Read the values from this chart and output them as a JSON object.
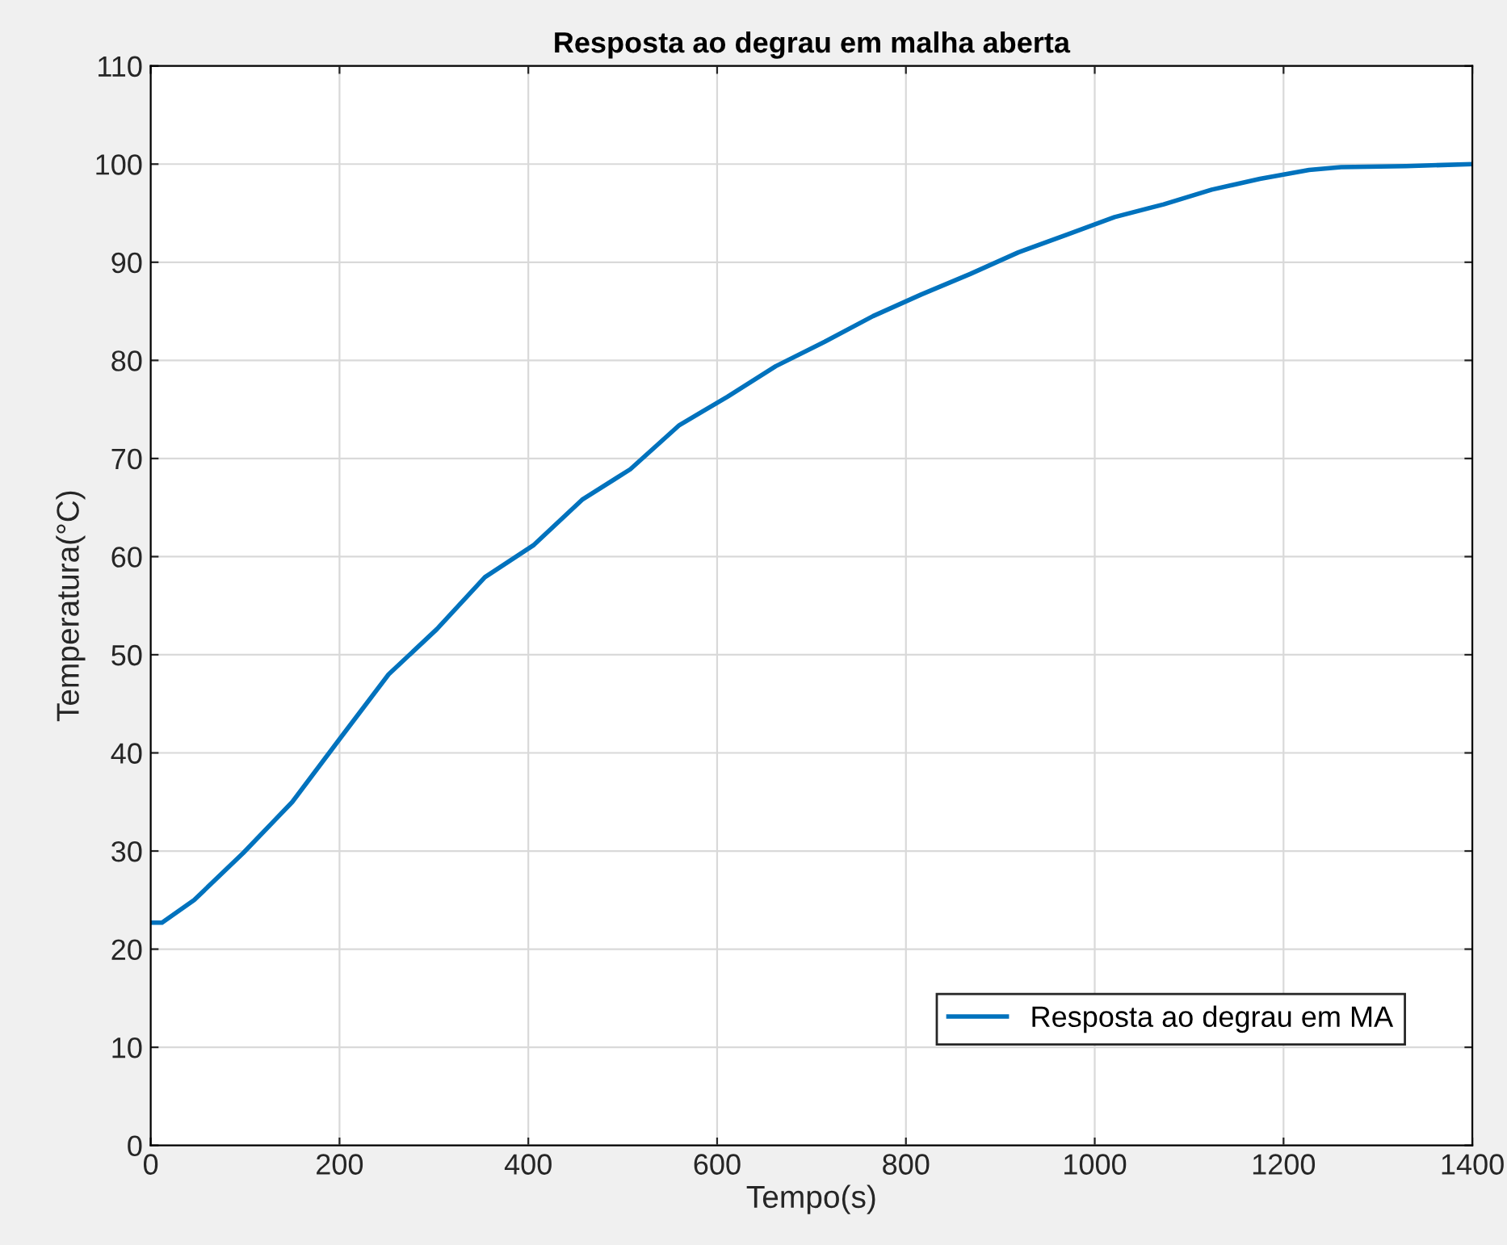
{
  "chart_data": {
    "type": "line",
    "title": "Resposta ao degrau em malha aberta",
    "xlabel": "Tempo(s)",
    "ylabel": "Temperatura(°C)",
    "series": [
      {
        "name": "Resposta ao degrau em MA",
        "color": "#0072bd",
        "x": [
          0,
          12,
          46,
          98,
          150,
          200,
          252,
          303,
          354,
          406,
          457,
          508,
          560,
          611,
          662,
          714,
          765,
          816,
          868,
          919,
          970,
          1021,
          1073,
          1124,
          1175,
          1227,
          1261,
          1330,
          1400
        ],
        "values": [
          22.7,
          22.7,
          25,
          29.8,
          35,
          41.4,
          48,
          52.6,
          57.9,
          61.2,
          65.8,
          68.9,
          73.4,
          76.3,
          79.4,
          81.9,
          84.5,
          86.7,
          88.8,
          91,
          92.8,
          94.6,
          95.9,
          97.4,
          98.5,
          99.4,
          99.7,
          99.8,
          100
        ]
      }
    ],
    "xlim": [
      0,
      1400
    ],
    "xticks": [
      0,
      200,
      400,
      600,
      800,
      1000,
      1200,
      1400
    ],
    "ylim": [
      0,
      110
    ],
    "yticks": [
      0,
      10,
      20,
      30,
      40,
      50,
      60,
      70,
      80,
      90,
      100,
      110
    ],
    "grid": true,
    "legend": "bottom right",
    "line_style": "solid",
    "marker": "none"
  }
}
